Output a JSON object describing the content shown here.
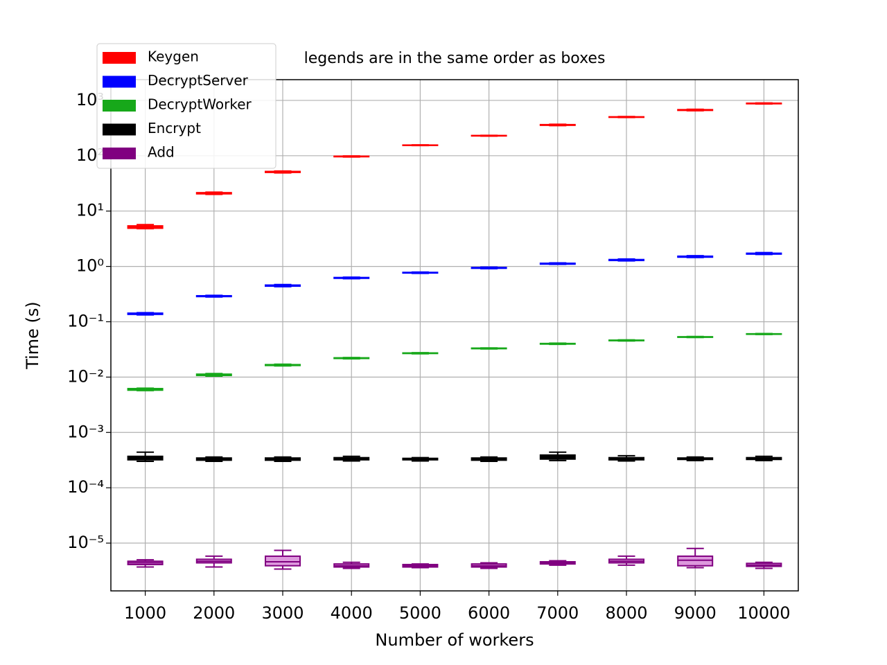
{
  "chart_data": {
    "type": "box",
    "title": "legends are in the same order as boxes",
    "xlabel": "Number of workers",
    "ylabel": "Time (s)",
    "yscale": "log",
    "grid": true,
    "legend": "upper left",
    "categories": [
      "1000",
      "2000",
      "3000",
      "4000",
      "5000",
      "6000",
      "7000",
      "8000",
      "9000",
      "10000"
    ],
    "ylim": [
      1.37e-06,
      2370
    ],
    "yticks": [
      {
        "value": 1e-05,
        "label": "10⁻⁵"
      },
      {
        "value": 0.0001,
        "label": "10⁻⁴"
      },
      {
        "value": 0.001,
        "label": "10⁻³"
      },
      {
        "value": 0.01,
        "label": "10⁻²"
      },
      {
        "value": 0.1,
        "label": "10⁻¹"
      },
      {
        "value": 1,
        "label": "10⁰"
      },
      {
        "value": 10,
        "label": "10¹"
      },
      {
        "value": 100,
        "label": "10²"
      },
      {
        "value": 1000,
        "label": "10³"
      }
    ],
    "series": [
      {
        "name": "Keygen",
        "color": "#ff0000",
        "box_fill": "#ff0000",
        "whisker_low": [
          4.8,
          20,
          49,
          95,
          153,
          226,
          350,
          490,
          650,
          860
        ],
        "q1": [
          4.9,
          20.5,
          50,
          96,
          154,
          228,
          355,
          495,
          660,
          870
        ],
        "median": [
          5.1,
          21,
          51,
          97,
          155,
          230,
          360,
          500,
          670,
          880
        ],
        "q3": [
          5.4,
          21.5,
          52,
          98,
          156,
          232,
          365,
          505,
          680,
          890
        ],
        "whisker_high": [
          5.7,
          22,
          53,
          99,
          157,
          234,
          370,
          510,
          690,
          900
        ]
      },
      {
        "name": "DecryptServer",
        "color": "#0000ff",
        "box_fill": "#0000ff",
        "whisker_low": [
          0.133,
          0.28,
          0.43,
          0.6,
          0.75,
          0.91,
          1.09,
          1.26,
          1.45,
          1.64
        ],
        "q1": [
          0.136,
          0.285,
          0.44,
          0.61,
          0.76,
          0.925,
          1.1,
          1.28,
          1.47,
          1.67
        ],
        "median": [
          0.14,
          0.29,
          0.45,
          0.62,
          0.77,
          0.94,
          1.12,
          1.3,
          1.5,
          1.7
        ],
        "q3": [
          0.143,
          0.295,
          0.46,
          0.63,
          0.78,
          0.955,
          1.14,
          1.33,
          1.53,
          1.73
        ],
        "whisker_high": [
          0.146,
          0.3,
          0.47,
          0.64,
          0.79,
          0.97,
          1.16,
          1.36,
          1.56,
          1.78
        ]
      },
      {
        "name": "DecryptWorker",
        "color": "#17a81a",
        "box_fill": "#17a81a",
        "whisker_low": [
          0.0057,
          0.0104,
          0.0159,
          0.0214,
          0.0264,
          0.0323,
          0.0391,
          0.045,
          0.0519,
          0.0588
        ],
        "q1": [
          0.0058,
          0.0107,
          0.0162,
          0.0217,
          0.0267,
          0.0326,
          0.0395,
          0.0455,
          0.0524,
          0.0594
        ],
        "median": [
          0.006,
          0.011,
          0.0165,
          0.022,
          0.027,
          0.033,
          0.04,
          0.046,
          0.053,
          0.06
        ],
        "q3": [
          0.0062,
          0.0113,
          0.0168,
          0.0223,
          0.0273,
          0.0334,
          0.0405,
          0.0465,
          0.0536,
          0.0606
        ],
        "whisker_high": [
          0.0063,
          0.0116,
          0.0171,
          0.0226,
          0.0276,
          0.0337,
          0.041,
          0.047,
          0.0541,
          0.0612
        ]
      },
      {
        "name": "Encrypt",
        "color": "#000000",
        "box_fill": "#000000",
        "whisker_low": [
          0.0003,
          0.0003,
          0.0003,
          0.000305,
          0.000305,
          0.0003,
          0.00031,
          0.000305,
          0.00031,
          0.00031
        ],
        "q1": [
          0.00032,
          0.000315,
          0.000315,
          0.00032,
          0.00032,
          0.000315,
          0.00033,
          0.00032,
          0.000325,
          0.000325
        ],
        "median": [
          0.000345,
          0.00033,
          0.00033,
          0.000335,
          0.00033,
          0.00033,
          0.00036,
          0.000335,
          0.000335,
          0.000335
        ],
        "q3": [
          0.00037,
          0.000345,
          0.000345,
          0.00035,
          0.00034,
          0.000345,
          0.00039,
          0.00035,
          0.000345,
          0.00035
        ],
        "whisker_high": [
          0.00044,
          0.00036,
          0.00036,
          0.00037,
          0.00035,
          0.00036,
          0.00044,
          0.00038,
          0.00036,
          0.00037
        ]
      },
      {
        "name": "Add",
        "color": "#800080",
        "box_fill": "#dd99dd",
        "whisker_low": [
          3.7e-06,
          3.7e-06,
          3.4e-06,
          3.5e-06,
          3.6e-06,
          3.5e-06,
          4e-06,
          4e-06,
          3.6e-06,
          3.5e-06
        ],
        "q1": [
          4.1e-06,
          4.4e-06,
          3.9e-06,
          3.7e-06,
          3.7e-06,
          3.7e-06,
          4.2e-06,
          4.4e-06,
          3.9e-06,
          3.8e-06
        ],
        "median": [
          4.4e-06,
          4.7e-06,
          4.6e-06,
          3.9e-06,
          3.9e-06,
          3.9e-06,
          4.4e-06,
          4.7e-06,
          4.9e-06,
          4e-06
        ],
        "q3": [
          4.7e-06,
          5.1e-06,
          5.8e-06,
          4.2e-06,
          4.1e-06,
          4.2e-06,
          4.6e-06,
          5.1e-06,
          5.8e-06,
          4.3e-06
        ],
        "whisker_high": [
          5e-06,
          5.8e-06,
          7.4e-06,
          4.5e-06,
          4.2e-06,
          4.4e-06,
          4.8e-06,
          5.8e-06,
          8e-06,
          4.5e-06
        ]
      }
    ]
  }
}
